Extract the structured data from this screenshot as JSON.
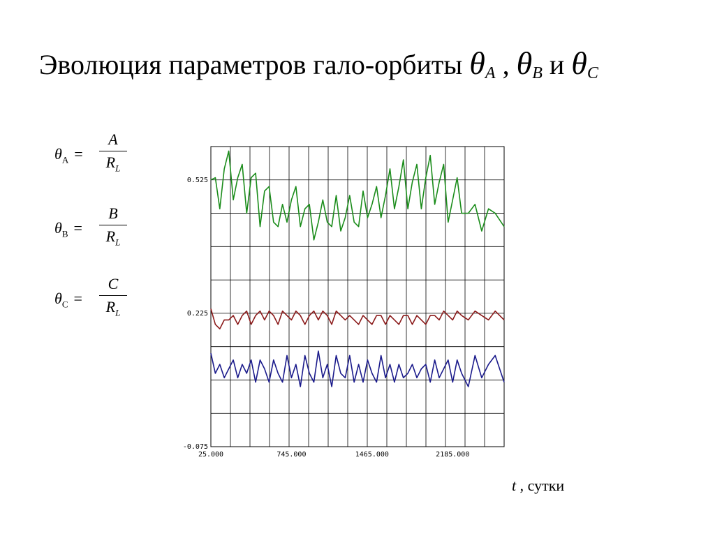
{
  "title": {
    "text": "Эволюция параметров гало-орбиты",
    "vars": [
      {
        "symbol": "θ",
        "sub": "A"
      },
      {
        "symbol": "θ",
        "sub": "B"
      },
      {
        "symbol": "θ",
        "sub": "C"
      }
    ],
    "sep": ",",
    "conj": "и"
  },
  "formulas": [
    {
      "symbol": "θ",
      "sub": "A",
      "eq": "=",
      "num": "A",
      "den": "R",
      "den_sub": "L"
    },
    {
      "symbol": "θ",
      "sub": "B",
      "eq": "=",
      "num": "B",
      "den": "R",
      "den_sub": "L"
    },
    {
      "symbol": "θ",
      "sub": "C",
      "eq": "=",
      "num": "C",
      "den": "R",
      "den_sub": "L"
    }
  ],
  "axis_caption": {
    "var": "t",
    "unit": ", сутки"
  },
  "chart_data": {
    "type": "line",
    "xlim": [
      25,
      2645
    ],
    "ylim": [
      -0.075,
      0.6
    ],
    "x_ticks": [
      25,
      745,
      1465,
      2185
    ],
    "x_tick_labels": [
      "25.000",
      "745.000",
      "1465.000",
      "2185.000"
    ],
    "y_ticks": [
      0.525,
      0.225,
      -0.075
    ],
    "y_tick_labels": [
      "0.525",
      "0.225",
      "-0.075"
    ],
    "grid": true,
    "series": [
      {
        "color": "#1a8c1a",
        "x": [
          25,
          65,
          105,
          145,
          185,
          225,
          265,
          305,
          345,
          385,
          425,
          465,
          505,
          545,
          585,
          625,
          665,
          705,
          745,
          785,
          825,
          865,
          905,
          945,
          985,
          1025,
          1065,
          1105,
          1145,
          1185,
          1225,
          1265,
          1305,
          1345,
          1385,
          1425,
          1465,
          1505,
          1545,
          1585,
          1625,
          1665,
          1705,
          1745,
          1785,
          1825,
          1865,
          1905,
          1945,
          1985,
          2025,
          2065,
          2105,
          2145,
          2185,
          2225,
          2265,
          2325,
          2385,
          2445,
          2505,
          2565,
          2645
        ],
        "y": [
          0.525,
          0.53,
          0.46,
          0.55,
          0.59,
          0.48,
          0.53,
          0.56,
          0.45,
          0.53,
          0.54,
          0.42,
          0.5,
          0.51,
          0.43,
          0.42,
          0.47,
          0.43,
          0.48,
          0.51,
          0.42,
          0.46,
          0.47,
          0.39,
          0.43,
          0.48,
          0.43,
          0.42,
          0.49,
          0.41,
          0.44,
          0.49,
          0.43,
          0.42,
          0.5,
          0.44,
          0.47,
          0.51,
          0.44,
          0.49,
          0.55,
          0.46,
          0.51,
          0.57,
          0.46,
          0.52,
          0.56,
          0.46,
          0.53,
          0.58,
          0.47,
          0.52,
          0.56,
          0.43,
          0.48,
          0.53,
          0.45,
          0.45,
          0.47,
          0.41,
          0.46,
          0.45,
          0.42
        ]
      },
      {
        "color": "#8b1a1a",
        "x": [
          25,
          65,
          105,
          145,
          185,
          225,
          265,
          305,
          345,
          385,
          425,
          465,
          505,
          545,
          585,
          625,
          665,
          705,
          745,
          785,
          825,
          865,
          905,
          945,
          985,
          1025,
          1065,
          1105,
          1145,
          1185,
          1225,
          1265,
          1305,
          1345,
          1385,
          1425,
          1465,
          1505,
          1545,
          1585,
          1625,
          1665,
          1705,
          1745,
          1785,
          1825,
          1865,
          1905,
          1945,
          1985,
          2025,
          2065,
          2105,
          2145,
          2185,
          2225,
          2265,
          2325,
          2385,
          2445,
          2505,
          2565,
          2645
        ],
        "y": [
          0.235,
          0.2,
          0.19,
          0.21,
          0.21,
          0.22,
          0.2,
          0.22,
          0.23,
          0.2,
          0.22,
          0.23,
          0.21,
          0.23,
          0.22,
          0.2,
          0.23,
          0.22,
          0.21,
          0.23,
          0.22,
          0.2,
          0.22,
          0.23,
          0.21,
          0.23,
          0.22,
          0.2,
          0.23,
          0.22,
          0.21,
          0.22,
          0.21,
          0.2,
          0.22,
          0.21,
          0.2,
          0.22,
          0.22,
          0.2,
          0.22,
          0.21,
          0.2,
          0.22,
          0.22,
          0.2,
          0.22,
          0.21,
          0.2,
          0.22,
          0.22,
          0.21,
          0.23,
          0.22,
          0.21,
          0.23,
          0.22,
          0.21,
          0.23,
          0.22,
          0.21,
          0.23,
          0.21
        ]
      },
      {
        "color": "#1a1a8b",
        "x": [
          25,
          65,
          105,
          145,
          185,
          225,
          265,
          305,
          345,
          385,
          425,
          465,
          505,
          545,
          585,
          625,
          665,
          705,
          745,
          785,
          825,
          865,
          905,
          945,
          985,
          1025,
          1065,
          1105,
          1145,
          1185,
          1225,
          1265,
          1305,
          1345,
          1385,
          1425,
          1465,
          1505,
          1545,
          1585,
          1625,
          1665,
          1705,
          1745,
          1785,
          1825,
          1865,
          1905,
          1945,
          1985,
          2025,
          2065,
          2105,
          2145,
          2185,
          2225,
          2265,
          2325,
          2385,
          2445,
          2505,
          2565,
          2645
        ],
        "y": [
          0.135,
          0.09,
          0.11,
          0.08,
          0.1,
          0.12,
          0.08,
          0.11,
          0.09,
          0.12,
          0.07,
          0.12,
          0.1,
          0.07,
          0.12,
          0.09,
          0.07,
          0.13,
          0.08,
          0.11,
          0.06,
          0.13,
          0.09,
          0.07,
          0.14,
          0.08,
          0.11,
          0.06,
          0.13,
          0.09,
          0.08,
          0.13,
          0.07,
          0.11,
          0.07,
          0.12,
          0.09,
          0.07,
          0.13,
          0.08,
          0.11,
          0.07,
          0.11,
          0.08,
          0.09,
          0.11,
          0.08,
          0.1,
          0.11,
          0.07,
          0.12,
          0.08,
          0.1,
          0.12,
          0.07,
          0.12,
          0.09,
          0.06,
          0.13,
          0.08,
          0.11,
          0.13,
          0.07
        ]
      }
    ]
  }
}
